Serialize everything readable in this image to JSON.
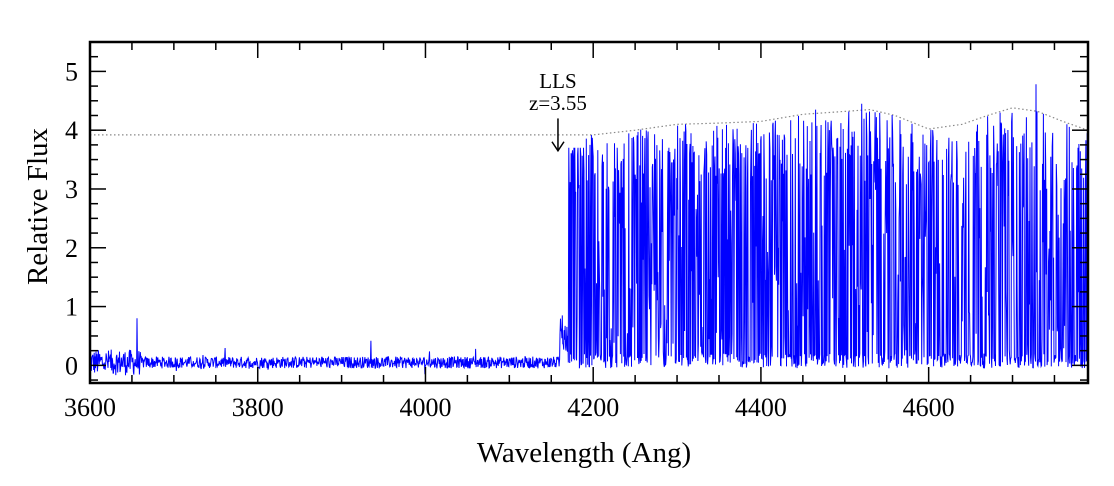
{
  "chart_data": {
    "type": "line",
    "title": "",
    "xlabel": "Wavelength (Ang)",
    "ylabel": "Relative Flux",
    "xlim": [
      3600,
      4790
    ],
    "ylim": [
      -0.3,
      5.5
    ],
    "x_ticks": [
      3600,
      3800,
      4000,
      4200,
      4400,
      4600
    ],
    "x_tick_labels": [
      "3600",
      "3800",
      "4000",
      "4200",
      "4400",
      "4600"
    ],
    "y_ticks": [
      0,
      1,
      2,
      3,
      4,
      5
    ],
    "y_tick_labels": [
      "0",
      "1",
      "2",
      "3",
      "4",
      "5"
    ],
    "grid": false,
    "legend": "none",
    "annotation": {
      "line1": "LLS",
      "line2": "z=3.55",
      "x": 4158,
      "arrow_from_y": 4.2,
      "arrow_to_y": 3.65
    },
    "series": [
      {
        "style": "solid",
        "color": "#0000ff",
        "description_points": {
          "noise_region_x": [
            3600,
            4160
          ],
          "noise_level_y": 0.05,
          "spikes": [
            [
              3656,
              0.8
            ],
            [
              3935,
              0.42
            ],
            [
              4060,
              0.28
            ],
            [
              4163,
              0.85
            ]
          ],
          "forest_region_x": [
            4170,
            4790
          ],
          "max_peaks": [
            [
              4310,
              4.1
            ],
            [
              4465,
              4.35
            ],
            [
              4520,
              4.45
            ],
            [
              4685,
              4.3
            ],
            [
              4728,
              4.78
            ]
          ]
        }
      },
      {
        "style": "dotted",
        "color": "#888888",
        "x": [
          3600,
          4200,
          4250,
          4300,
          4350,
          4400,
          4450,
          4500,
          4530,
          4560,
          4600,
          4640,
          4670,
          4700,
          4730,
          4760,
          4790
        ],
        "y": [
          3.92,
          3.92,
          4.0,
          4.1,
          4.12,
          4.15,
          4.27,
          4.32,
          4.35,
          4.25,
          4.02,
          4.1,
          4.25,
          4.38,
          4.32,
          4.15,
          4.0
        ]
      }
    ]
  }
}
